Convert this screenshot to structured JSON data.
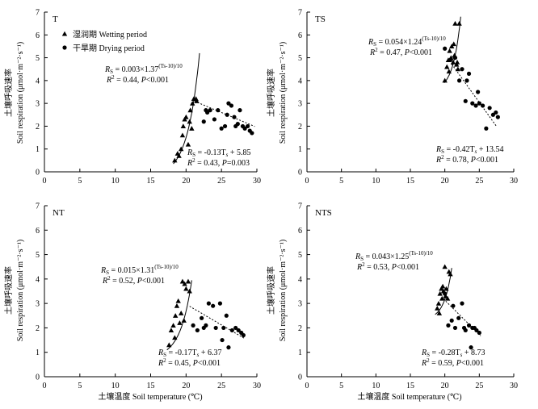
{
  "figure": {
    "y_label_cn": "土壤呼吸速率",
    "y_label_en": "Soil respiration (μmol·m⁻²·s⁻¹)",
    "x_label": "土壤温度 Soil temperature (℃)",
    "legend": {
      "wetting": "湿润期 Wetting period",
      "drying": "干旱期 Drying period"
    }
  },
  "chart_data": [
    {
      "type": "scatter",
      "title": "T",
      "xlim": [
        0,
        30
      ],
      "ylim": [
        0,
        7
      ],
      "xticks": [
        0,
        5,
        10,
        15,
        20,
        25,
        30
      ],
      "yticks": [
        0,
        1,
        2,
        3,
        4,
        5,
        6,
        7
      ],
      "legend_position": "top-left",
      "series": [
        {
          "name": "湿润期 Wetting period",
          "marker": "triangle",
          "x": [
            18.4,
            18.8,
            19.3,
            19.5,
            19.6,
            19.8,
            20.0,
            20.3,
            20.5,
            20.6,
            20.9,
            21.1,
            21.4,
            21.5,
            19.0,
            20.8
          ],
          "y": [
            0.5,
            0.8,
            1.0,
            1.6,
            2.0,
            2.3,
            2.4,
            1.2,
            2.2,
            2.7,
            3.0,
            3.2,
            3.2,
            3.1,
            0.7,
            1.9
          ]
        },
        {
          "name": "干旱期 Drying period",
          "marker": "circle",
          "x": [
            22.5,
            23.0,
            23.4,
            24.0,
            24.5,
            25.0,
            25.5,
            26.0,
            26.4,
            26.8,
            27.0,
            27.3,
            27.6,
            28.0,
            28.3,
            28.7,
            29.0,
            29.3,
            22.8,
            25.8
          ],
          "y": [
            2.2,
            2.6,
            2.7,
            2.3,
            2.7,
            1.9,
            2.0,
            3.0,
            2.9,
            2.4,
            2.0,
            2.1,
            2.7,
            2.0,
            1.9,
            2.0,
            1.8,
            1.7,
            2.7,
            2.5
          ]
        }
      ],
      "fits": [
        {
          "kind": "exp",
          "a": 0.003,
          "b": 1.37,
          "x_range": [
            18.2,
            21.9
          ]
        },
        {
          "kind": "linear",
          "m": -0.13,
          "c": 5.85,
          "x_range": [
            21.2,
            29.7
          ]
        }
      ],
      "annotations": [
        {
          "label_a": "R",
          "sub_a": "S",
          "text_a": " = 0.003×1.37",
          "sup": "(Ts-10)/10",
          "label_b": "R",
          "sup_b": "2",
          "text_b": " = 0.44, ",
          "label_c": "P",
          "text_c": "<0.001",
          "at": "upper-middle"
        },
        {
          "label_a": "R",
          "sub_a": "S",
          "text_a": " = -0.13T",
          "sub2": "s",
          "text_a2": " + 5.85",
          "label_b": "R",
          "sup_b": "2",
          "text_b": " = 0.43, ",
          "label_c": "P",
          "text_c": "=0.003",
          "at": "lower-right"
        }
      ]
    },
    {
      "type": "scatter",
      "title": "TS",
      "xlim": [
        0,
        30
      ],
      "ylim": [
        0,
        7
      ],
      "xticks": [
        0,
        5,
        10,
        15,
        20,
        25,
        30
      ],
      "yticks": [
        0,
        1,
        2,
        3,
        4,
        5,
        6,
        7
      ],
      "series": [
        {
          "name": "湿润期 Wetting period",
          "marker": "triangle",
          "x": [
            20.0,
            20.3,
            20.5,
            20.7,
            20.9,
            21.0,
            21.2,
            21.4,
            21.5,
            21.7,
            21.9,
            22.1,
            20.6,
            21.3,
            21.8
          ],
          "y": [
            4.0,
            4.6,
            4.9,
            5.3,
            5.0,
            5.5,
            4.8,
            5.1,
            6.5,
            4.7,
            4.5,
            6.5,
            4.4,
            5.6,
            4.8
          ]
        },
        {
          "name": "干旱期 Drying period",
          "marker": "circle",
          "x": [
            20.0,
            20.8,
            21.5,
            22.1,
            22.5,
            23.0,
            23.5,
            24.0,
            24.5,
            25.0,
            25.5,
            26.0,
            26.5,
            27.0,
            27.4,
            27.7,
            23.2,
            24.8
          ],
          "y": [
            5.4,
            4.9,
            5.0,
            4.0,
            4.5,
            3.1,
            4.3,
            3.0,
            2.9,
            3.0,
            2.9,
            1.9,
            2.8,
            2.5,
            2.6,
            2.4,
            4.0,
            3.5
          ]
        }
      ],
      "fits": [
        {
          "kind": "exp",
          "a": 0.054,
          "b": 1.24,
          "x_range": [
            19.9,
            22.3
          ]
        },
        {
          "kind": "linear",
          "m": -0.42,
          "c": 13.54,
          "x_range": [
            21.0,
            27.5
          ]
        }
      ],
      "annotations": [
        {
          "label_a": "R",
          "sub_a": "S",
          "text_a": " = 0.054×1.24",
          "sup": "(Ts-10)/10",
          "label_b": "R",
          "sup_b": "2",
          "text_b": " = 0.47, ",
          "label_c": "P",
          "text_c": "<0.001",
          "at": "upper-middle"
        },
        {
          "label_a": "R",
          "sub_a": "S",
          "text_a": " = -0.42T",
          "sub2": "s",
          "text_a2": " + 13.54",
          "label_b": "R",
          "sup_b": "2",
          "text_b": " = 0.78, ",
          "label_c": "P",
          "text_c": "<0.001",
          "at": "lower-right"
        }
      ]
    },
    {
      "type": "scatter",
      "title": "NT",
      "xlim": [
        0,
        30
      ],
      "ylim": [
        0,
        7
      ],
      "xticks": [
        0,
        5,
        10,
        15,
        20,
        25,
        30
      ],
      "yticks": [
        0,
        1,
        2,
        3,
        4,
        5,
        6,
        7
      ],
      "series": [
        {
          "name": "湿润期 Wetting period",
          "marker": "triangle",
          "x": [
            17.6,
            17.9,
            18.2,
            18.5,
            18.7,
            18.9,
            19.1,
            19.3,
            19.5,
            19.7,
            20.0,
            20.3,
            20.5,
            18.4,
            19.8
          ],
          "y": [
            1.3,
            1.9,
            2.1,
            2.5,
            2.9,
            3.1,
            2.2,
            2.6,
            3.9,
            2.3,
            3.6,
            3.9,
            3.5,
            1.6,
            3.8
          ]
        },
        {
          "name": "干旱期 Drying period",
          "marker": "circle",
          "x": [
            21.0,
            21.6,
            22.2,
            22.8,
            23.2,
            23.8,
            24.2,
            24.8,
            25.3,
            25.7,
            26.0,
            26.5,
            27.0,
            27.4,
            27.8,
            28.1,
            22.5,
            25.1
          ],
          "y": [
            2.1,
            1.9,
            2.4,
            2.1,
            3.0,
            2.9,
            2.0,
            3.0,
            2.0,
            2.5,
            1.2,
            1.9,
            2.0,
            1.9,
            1.8,
            1.7,
            2.0,
            1.5
          ]
        }
      ],
      "fits": [
        {
          "kind": "exp",
          "a": 0.015,
          "b": 1.31,
          "x_range": [
            17.3,
            20.8
          ]
        },
        {
          "kind": "linear",
          "m": -0.17,
          "c": 6.37,
          "x_range": [
            20.5,
            28.2
          ]
        }
      ],
      "annotations": [
        {
          "label_a": "R",
          "sub_a": "S",
          "text_a": " = 0.015×1.31",
          "sup": "(Ts-10)/10",
          "label_b": "R",
          "sup_b": "2",
          "text_b": " = 0.52, ",
          "label_c": "P",
          "text_c": "<0.001",
          "at": "upper-middle"
        },
        {
          "label_a": "R",
          "sub_a": "S",
          "text_a": " = -0.17T",
          "sub2": "s",
          "text_a2": " + 6.37",
          "label_b": "R",
          "sup_b": "2",
          "text_b": " = 0.45, ",
          "label_c": "P",
          "text_c": "<0.001",
          "at": "lower-right"
        }
      ]
    },
    {
      "type": "scatter",
      "title": "NTS",
      "xlim": [
        0,
        30
      ],
      "ylim": [
        0,
        7
      ],
      "xticks": [
        0,
        5,
        10,
        15,
        20,
        25,
        30
      ],
      "yticks": [
        0,
        1,
        2,
        3,
        4,
        5,
        6,
        7
      ],
      "series": [
        {
          "name": "湿润期 Wetting period",
          "marker": "triangle",
          "x": [
            18.9,
            19.1,
            19.3,
            19.5,
            19.6,
            19.8,
            20.0,
            20.2,
            20.4,
            20.6,
            20.8,
            19.2,
            19.7,
            20.1
          ],
          "y": [
            2.8,
            3.0,
            3.4,
            3.6,
            3.2,
            3.5,
            4.5,
            3.6,
            3.2,
            4.3,
            4.2,
            2.6,
            3.7,
            3.3
          ]
        },
        {
          "name": "干旱期 Drying period",
          "marker": "circle",
          "x": [
            20.0,
            20.5,
            21.0,
            21.5,
            22.0,
            22.5,
            23.0,
            23.5,
            24.0,
            24.3,
            24.6,
            25.0,
            21.2,
            22.8,
            23.8
          ],
          "y": [
            3.4,
            2.1,
            2.3,
            2.0,
            2.4,
            3.0,
            1.9,
            2.1,
            2.0,
            2.0,
            1.9,
            1.8,
            2.9,
            2.0,
            1.2
          ]
        }
      ],
      "fits": [
        {
          "kind": "exp",
          "a": 0.043,
          "b": 1.25,
          "x_range": [
            18.6,
            21.0
          ]
        },
        {
          "kind": "linear",
          "m": -0.28,
          "c": 8.73,
          "x_range": [
            19.8,
            25.2
          ]
        }
      ],
      "annotations": [
        {
          "label_a": "R",
          "sub_a": "S",
          "text_a": " = 0.043×1.25",
          "sup": "(Ts-10)/10",
          "label_b": "R",
          "sup_b": "2",
          "text_b": " = 0.53, ",
          "label_c": "P",
          "text_c": "<0.001",
          "at": "upper-middle"
        },
        {
          "label_a": "R",
          "sub_a": "S",
          "text_a": " = -0.28T",
          "sub2": "s",
          "text_a2": " + 8.73",
          "label_b": "R",
          "sup_b": "2",
          "text_b": " = 0.59, ",
          "label_c": "P",
          "text_c": "<0.001",
          "at": "lower-right"
        }
      ]
    }
  ]
}
